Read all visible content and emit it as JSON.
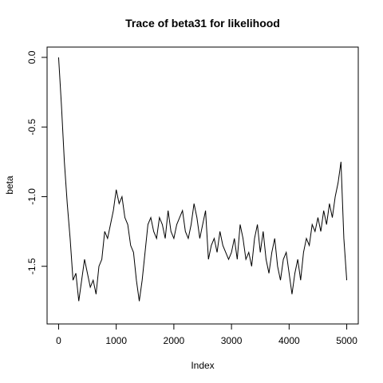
{
  "chart_data": {
    "type": "line",
    "title": "Trace of beta31 for likelihood",
    "x_label": "Index",
    "y_label": "beta",
    "x": [
      0,
      50,
      100,
      150,
      200,
      250,
      300,
      350,
      400,
      450,
      500,
      550,
      600,
      650,
      700,
      750,
      800,
      850,
      900,
      950,
      1000,
      1050,
      1100,
      1150,
      1200,
      1250,
      1300,
      1350,
      1400,
      1450,
      1500,
      1550,
      1600,
      1650,
      1700,
      1750,
      1800,
      1850,
      1900,
      1950,
      2000,
      2050,
      2100,
      2150,
      2200,
      2250,
      2300,
      2350,
      2400,
      2450,
      2500,
      2550,
      2600,
      2650,
      2700,
      2750,
      2800,
      2850,
      2900,
      2950,
      3000,
      3050,
      3100,
      3150,
      3200,
      3250,
      3300,
      3350,
      3400,
      3450,
      3500,
      3550,
      3600,
      3650,
      3700,
      3750,
      3800,
      3850,
      3900,
      3950,
      4000,
      4050,
      4100,
      4150,
      4200,
      4250,
      4300,
      4350,
      4400,
      4450,
      4500,
      4550,
      4600,
      4650,
      4700,
      4750,
      4800,
      4850,
      4900,
      4950,
      5000
    ],
    "series": [
      {
        "name": "beta31",
        "color": "#000000",
        "values": [
          0.0,
          -0.35,
          -0.75,
          -1.05,
          -1.3,
          -1.6,
          -1.55,
          -1.75,
          -1.6,
          -1.45,
          -1.55,
          -1.65,
          -1.6,
          -1.7,
          -1.5,
          -1.45,
          -1.25,
          -1.3,
          -1.2,
          -1.1,
          -0.95,
          -1.05,
          -1.0,
          -1.15,
          -1.2,
          -1.35,
          -1.4,
          -1.6,
          -1.75,
          -1.6,
          -1.4,
          -1.2,
          -1.15,
          -1.25,
          -1.3,
          -1.15,
          -1.2,
          -1.3,
          -1.1,
          -1.25,
          -1.3,
          -1.2,
          -1.15,
          -1.1,
          -1.25,
          -1.3,
          -1.2,
          -1.05,
          -1.15,
          -1.3,
          -1.2,
          -1.1,
          -1.45,
          -1.35,
          -1.3,
          -1.4,
          -1.25,
          -1.35,
          -1.4,
          -1.45,
          -1.4,
          -1.3,
          -1.45,
          -1.2,
          -1.3,
          -1.45,
          -1.4,
          -1.5,
          -1.3,
          -1.2,
          -1.4,
          -1.25,
          -1.45,
          -1.55,
          -1.4,
          -1.3,
          -1.5,
          -1.6,
          -1.45,
          -1.4,
          -1.55,
          -1.7,
          -1.55,
          -1.45,
          -1.6,
          -1.4,
          -1.3,
          -1.35,
          -1.2,
          -1.25,
          -1.15,
          -1.25,
          -1.1,
          -1.2,
          -1.05,
          -1.15,
          -1.0,
          -0.9,
          -0.75,
          -1.3,
          -1.6
        ]
      }
    ],
    "xlim": [
      -200,
      5200
    ],
    "xticks": [
      0,
      1000,
      2000,
      3000,
      4000,
      5000
    ],
    "ylim": [
      -1.914,
      0.074
    ],
    "yticks": [
      {
        "value": 0,
        "label": "0.0"
      },
      -0.5,
      {
        "value": -1,
        "label": "-1.0"
      },
      -1.5
    ]
  }
}
